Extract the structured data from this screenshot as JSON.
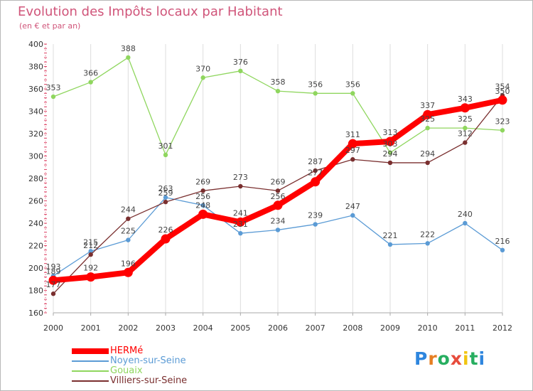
{
  "chart_data": {
    "type": "line",
    "title": "Evolution des Impôts locaux par Habitant",
    "subtitle": "(en € et par an)",
    "xlabel": "",
    "ylabel": "",
    "ylim": [
      160,
      400
    ],
    "yticks": [
      160,
      180,
      200,
      220,
      240,
      260,
      280,
      300,
      320,
      340,
      360,
      380,
      400
    ],
    "x": [
      2000,
      2001,
      2002,
      2003,
      2004,
      2005,
      2006,
      2007,
      2008,
      2009,
      2010,
      2011,
      2012
    ],
    "grid": "vertical",
    "legend_position": "bottom-left",
    "series": [
      {
        "name": "Noyen-sur-Seine",
        "color": "#5b9bd5",
        "values": [
          193,
          215,
          225,
          263,
          256,
          231,
          234,
          239,
          247,
          221,
          222,
          240,
          216
        ]
      },
      {
        "name": "Gouaix",
        "color": "#8fd65e",
        "values": [
          353,
          366,
          388,
          301,
          370,
          376,
          358,
          356,
          356,
          303,
          325,
          325,
          323
        ]
      },
      {
        "name": "Villiers-sur-Seine",
        "color": "#7a2f2f",
        "values": [
          177,
          212,
          244,
          259,
          269,
          273,
          269,
          287,
          297,
          294,
          294,
          312,
          354
        ]
      },
      {
        "name": "HERMé",
        "color": "#ff0000",
        "values": [
          189,
          192,
          196,
          226,
          248,
          241,
          256,
          277,
          311,
          313,
          337,
          343,
          350
        ]
      }
    ]
  },
  "legend": {
    "items": [
      {
        "label": "HERMé",
        "color": "#ff0000"
      },
      {
        "label": "Noyen-sur-Seine",
        "color": "#5b9bd5"
      },
      {
        "label": "Gouaix",
        "color": "#8fd65e"
      },
      {
        "label": "Villiers-sur-Seine",
        "color": "#7a2f2f"
      }
    ]
  },
  "logo": {
    "letters": [
      "P",
      "r",
      "o",
      "x",
      "i",
      "t",
      "i"
    ],
    "colors": [
      "#2e86de",
      "#e67e22",
      "#27ae60",
      "#e74c3c",
      "#f1c40f",
      "#27ae60",
      "#2e86de"
    ]
  }
}
